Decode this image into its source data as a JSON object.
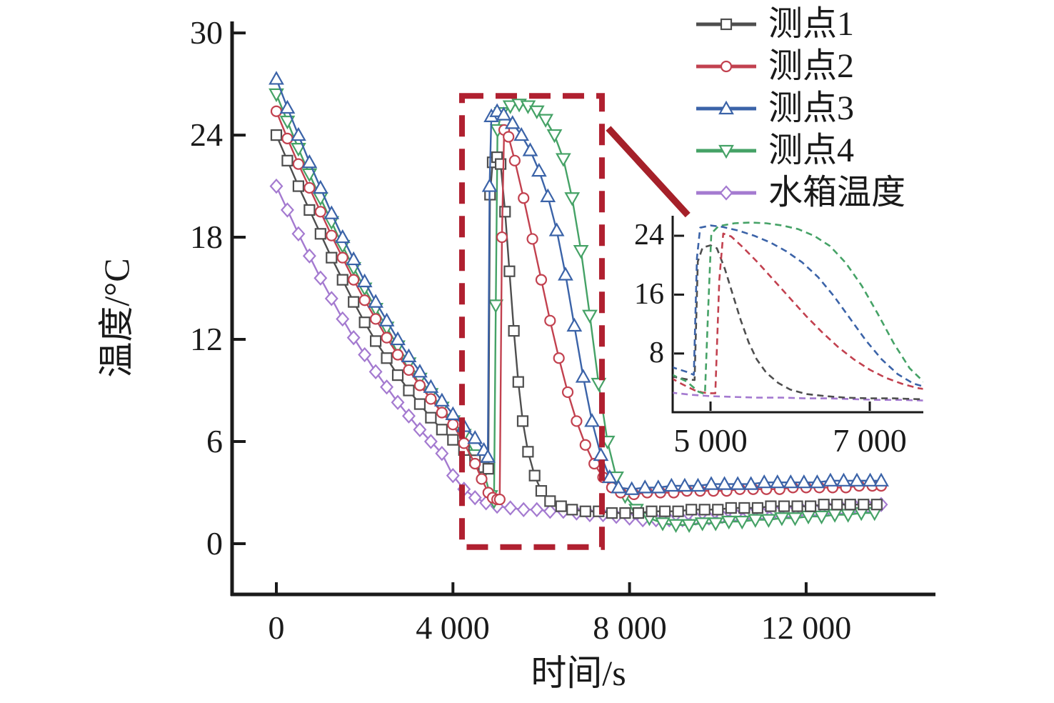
{
  "chart_data": {
    "type": "line",
    "title": "",
    "xlabel": "时间/s",
    "ylabel": "温度/°C",
    "xlim": [
      -1000,
      14900
    ],
    "ylim": [
      -3,
      30.6
    ],
    "grid": false,
    "x_ticks": [
      {
        "value": 0,
        "label": "0"
      },
      {
        "value": 4000,
        "label": "4 000"
      },
      {
        "value": 8000,
        "label": "8 000"
      },
      {
        "value": 12000,
        "label": "12 000"
      }
    ],
    "y_ticks": [
      {
        "value": 0,
        "label": "0"
      },
      {
        "value": 6,
        "label": "6"
      },
      {
        "value": 12,
        "label": "12"
      },
      {
        "value": 18,
        "label": "18"
      },
      {
        "value": 24,
        "label": "24"
      },
      {
        "value": 30,
        "label": "30"
      }
    ],
    "legend": {
      "position": "top-right"
    },
    "series": [
      {
        "name": "测点1",
        "color": "#4e4e4e",
        "marker": "square",
        "points": [
          [
            0,
            24.0
          ],
          [
            250,
            22.5
          ],
          [
            500,
            21.0
          ],
          [
            750,
            19.6
          ],
          [
            1000,
            18.2
          ],
          [
            1250,
            16.8
          ],
          [
            1500,
            15.5
          ],
          [
            1750,
            14.2
          ],
          [
            2000,
            13.0
          ],
          [
            2250,
            11.9
          ],
          [
            2500,
            10.9
          ],
          [
            2750,
            9.9
          ],
          [
            3000,
            9.0
          ],
          [
            3250,
            8.2
          ],
          [
            3500,
            7.4
          ],
          [
            3750,
            6.7
          ],
          [
            4000,
            6.1
          ],
          [
            4250,
            5.5
          ],
          [
            4500,
            4.9
          ],
          [
            4700,
            4.5
          ],
          [
            4800,
            4.4
          ],
          [
            4840,
            20.5
          ],
          [
            4900,
            22.4
          ],
          [
            5000,
            22.7
          ],
          [
            5080,
            22.3
          ],
          [
            5180,
            19.5
          ],
          [
            5280,
            16.0
          ],
          [
            5380,
            12.5
          ],
          [
            5480,
            9.5
          ],
          [
            5580,
            7.2
          ],
          [
            5700,
            5.4
          ],
          [
            5850,
            4.0
          ],
          [
            6000,
            3.1
          ],
          [
            6200,
            2.5
          ],
          [
            6450,
            2.2
          ],
          [
            6700,
            2.0
          ],
          [
            7000,
            1.9
          ],
          [
            7300,
            1.9
          ],
          [
            7600,
            1.8
          ],
          [
            7900,
            1.8
          ],
          [
            8200,
            1.8
          ],
          [
            8500,
            1.9
          ],
          [
            8800,
            1.9
          ],
          [
            9100,
            1.9
          ],
          [
            9400,
            2.0
          ],
          [
            9700,
            2.0
          ],
          [
            10000,
            2.0
          ],
          [
            10300,
            2.1
          ],
          [
            10600,
            2.1
          ],
          [
            10900,
            2.1
          ],
          [
            11200,
            2.2
          ],
          [
            11500,
            2.2
          ],
          [
            11800,
            2.2
          ],
          [
            12100,
            2.2
          ],
          [
            12400,
            2.3
          ],
          [
            12700,
            2.3
          ],
          [
            13000,
            2.3
          ],
          [
            13300,
            2.3
          ],
          [
            13600,
            2.3
          ]
        ]
      },
      {
        "name": "测点2",
        "color": "#c2414f",
        "marker": "circle",
        "points": [
          [
            0,
            25.4
          ],
          [
            250,
            23.8
          ],
          [
            500,
            22.3
          ],
          [
            750,
            20.9
          ],
          [
            1000,
            19.5
          ],
          [
            1250,
            18.1
          ],
          [
            1500,
            16.8
          ],
          [
            1750,
            15.5
          ],
          [
            2000,
            14.3
          ],
          [
            2250,
            13.2
          ],
          [
            2500,
            12.1
          ],
          [
            2750,
            11.1
          ],
          [
            3000,
            10.2
          ],
          [
            3250,
            9.3
          ],
          [
            3500,
            8.5
          ],
          [
            3750,
            7.7
          ],
          [
            4000,
            7.0
          ],
          [
            4250,
            5.9
          ],
          [
            4500,
            4.7
          ],
          [
            4650,
            3.8
          ],
          [
            4800,
            3.0
          ],
          [
            4900,
            2.7
          ],
          [
            5000,
            2.6
          ],
          [
            5060,
            2.6
          ],
          [
            5110,
            18.0
          ],
          [
            5160,
            24.3
          ],
          [
            5260,
            23.9
          ],
          [
            5400,
            22.5
          ],
          [
            5600,
            20.3
          ],
          [
            5800,
            17.9
          ],
          [
            6000,
            15.5
          ],
          [
            6200,
            13.1
          ],
          [
            6400,
            10.9
          ],
          [
            6600,
            8.9
          ],
          [
            6800,
            7.2
          ],
          [
            7000,
            5.8
          ],
          [
            7200,
            4.7
          ],
          [
            7400,
            3.9
          ],
          [
            7600,
            3.3
          ],
          [
            7800,
            3.0
          ],
          [
            8100,
            2.9
          ],
          [
            8400,
            3.0
          ],
          [
            8700,
            3.0
          ],
          [
            9000,
            3.0
          ],
          [
            9300,
            3.1
          ],
          [
            9600,
            3.1
          ],
          [
            9900,
            3.1
          ],
          [
            10200,
            3.1
          ],
          [
            10500,
            3.2
          ],
          [
            10800,
            3.2
          ],
          [
            11100,
            3.2
          ],
          [
            11400,
            3.2
          ],
          [
            11700,
            3.3
          ],
          [
            12000,
            3.3
          ],
          [
            12300,
            3.3
          ],
          [
            12600,
            3.3
          ],
          [
            12900,
            3.3
          ],
          [
            13200,
            3.4
          ],
          [
            13500,
            3.4
          ],
          [
            13700,
            3.4
          ]
        ]
      },
      {
        "name": "测点3",
        "color": "#3b63a8",
        "marker": "triangle-up",
        "points": [
          [
            0,
            27.3
          ],
          [
            250,
            25.6
          ],
          [
            500,
            24.0
          ],
          [
            750,
            22.4
          ],
          [
            1000,
            20.9
          ],
          [
            1250,
            19.4
          ],
          [
            1500,
            18.0
          ],
          [
            1750,
            16.7
          ],
          [
            2000,
            15.4
          ],
          [
            2250,
            14.2
          ],
          [
            2500,
            13.1
          ],
          [
            2750,
            12.0
          ],
          [
            3000,
            11.0
          ],
          [
            3250,
            10.1
          ],
          [
            3500,
            9.2
          ],
          [
            3750,
            8.4
          ],
          [
            4000,
            7.6
          ],
          [
            4250,
            6.9
          ],
          [
            4500,
            6.2
          ],
          [
            4700,
            5.5
          ],
          [
            4790,
            5.1
          ],
          [
            4830,
            21.0
          ],
          [
            4870,
            25.1
          ],
          [
            5000,
            25.4
          ],
          [
            5150,
            25.2
          ],
          [
            5350,
            24.7
          ],
          [
            5550,
            24.0
          ],
          [
            5750,
            23.1
          ],
          [
            5950,
            21.9
          ],
          [
            6150,
            20.4
          ],
          [
            6350,
            18.4
          ],
          [
            6550,
            15.8
          ],
          [
            6750,
            12.8
          ],
          [
            6950,
            9.8
          ],
          [
            7150,
            7.2
          ],
          [
            7350,
            5.2
          ],
          [
            7550,
            3.9
          ],
          [
            7750,
            3.3
          ],
          [
            8050,
            3.2
          ],
          [
            8350,
            3.3
          ],
          [
            8650,
            3.3
          ],
          [
            8950,
            3.4
          ],
          [
            9250,
            3.4
          ],
          [
            9550,
            3.4
          ],
          [
            9850,
            3.5
          ],
          [
            10150,
            3.5
          ],
          [
            10450,
            3.5
          ],
          [
            10750,
            3.5
          ],
          [
            11050,
            3.6
          ],
          [
            11350,
            3.6
          ],
          [
            11650,
            3.6
          ],
          [
            11950,
            3.6
          ],
          [
            12250,
            3.6
          ],
          [
            12550,
            3.7
          ],
          [
            12850,
            3.7
          ],
          [
            13150,
            3.7
          ],
          [
            13450,
            3.7
          ],
          [
            13700,
            3.7
          ]
        ]
      },
      {
        "name": "测点4",
        "color": "#45a266",
        "marker": "triangle-down",
        "points": [
          [
            0,
            26.4
          ],
          [
            250,
            24.8
          ],
          [
            500,
            23.2
          ],
          [
            750,
            21.7
          ],
          [
            1000,
            20.3
          ],
          [
            1250,
            18.9
          ],
          [
            1500,
            17.5
          ],
          [
            1750,
            16.2
          ],
          [
            2000,
            15.0
          ],
          [
            2250,
            13.8
          ],
          [
            2500,
            12.7
          ],
          [
            2750,
            11.6
          ],
          [
            3000,
            10.6
          ],
          [
            3250,
            9.7
          ],
          [
            3500,
            8.8
          ],
          [
            3750,
            8.0
          ],
          [
            4000,
            7.2
          ],
          [
            4250,
            6.4
          ],
          [
            4500,
            5.2
          ],
          [
            4700,
            4.2
          ],
          [
            4850,
            2.8
          ],
          [
            4930,
            2.5
          ],
          [
            4970,
            14.0
          ],
          [
            5010,
            24.3
          ],
          [
            5100,
            25.3
          ],
          [
            5300,
            25.7
          ],
          [
            5500,
            25.8
          ],
          [
            5700,
            25.7
          ],
          [
            5900,
            25.4
          ],
          [
            6100,
            24.9
          ],
          [
            6300,
            24.0
          ],
          [
            6500,
            22.6
          ],
          [
            6700,
            20.3
          ],
          [
            6900,
            17.2
          ],
          [
            7100,
            13.4
          ],
          [
            7300,
            9.4
          ],
          [
            7500,
            6.0
          ],
          [
            7700,
            3.9
          ],
          [
            7900,
            2.8
          ],
          [
            8150,
            2.0
          ],
          [
            8450,
            1.5
          ],
          [
            8750,
            1.2
          ],
          [
            9050,
            1.1
          ],
          [
            9350,
            1.1
          ],
          [
            9650,
            1.2
          ],
          [
            9950,
            1.2
          ],
          [
            10250,
            1.3
          ],
          [
            10550,
            1.3
          ],
          [
            10850,
            1.4
          ],
          [
            11150,
            1.4
          ],
          [
            11450,
            1.5
          ],
          [
            11750,
            1.5
          ],
          [
            12050,
            1.6
          ],
          [
            12350,
            1.6
          ],
          [
            12650,
            1.7
          ],
          [
            12950,
            1.7
          ],
          [
            13250,
            1.8
          ],
          [
            13550,
            1.8
          ]
        ]
      },
      {
        "name": "水箱温度",
        "color": "#a47ad0",
        "marker": "diamond",
        "points": [
          [
            0,
            21.0
          ],
          [
            250,
            19.6
          ],
          [
            500,
            18.2
          ],
          [
            750,
            16.9
          ],
          [
            1000,
            15.6
          ],
          [
            1250,
            14.4
          ],
          [
            1500,
            13.2
          ],
          [
            1750,
            12.1
          ],
          [
            2000,
            11.1
          ],
          [
            2250,
            10.1
          ],
          [
            2500,
            9.2
          ],
          [
            2750,
            8.3
          ],
          [
            3000,
            7.5
          ],
          [
            3250,
            6.7
          ],
          [
            3500,
            6.0
          ],
          [
            3750,
            5.3
          ],
          [
            4000,
            4.0
          ],
          [
            4250,
            3.2
          ],
          [
            4500,
            2.7
          ],
          [
            4750,
            2.4
          ],
          [
            5000,
            2.2
          ],
          [
            5300,
            2.1
          ],
          [
            5600,
            2.0
          ],
          [
            5900,
            2.0
          ],
          [
            6200,
            1.9
          ],
          [
            6500,
            1.9
          ],
          [
            6800,
            1.8
          ],
          [
            7100,
            1.7
          ],
          [
            7400,
            1.7
          ],
          [
            7700,
            1.6
          ],
          [
            8000,
            1.5
          ],
          [
            8300,
            1.4
          ],
          [
            8600,
            1.4
          ],
          [
            8900,
            1.4
          ],
          [
            9200,
            1.4
          ],
          [
            9500,
            1.5
          ],
          [
            9800,
            1.5
          ],
          [
            10100,
            1.6
          ],
          [
            10400,
            1.7
          ],
          [
            10700,
            1.8
          ],
          [
            11000,
            1.8
          ],
          [
            11300,
            1.9
          ],
          [
            11600,
            1.9
          ],
          [
            11900,
            2.0
          ],
          [
            12200,
            2.0
          ],
          [
            12500,
            2.1
          ],
          [
            12800,
            2.1
          ],
          [
            13100,
            2.2
          ],
          [
            13400,
            2.2
          ],
          [
            13700,
            2.3
          ]
        ]
      }
    ],
    "annotations": {
      "zoom_rect": {
        "t0": 4205,
        "t1": 7375,
        "T0": -0.2,
        "T1": 26.3,
        "color": "#b02030",
        "style": "dashed"
      },
      "callout_line": {
        "from_t": 7520,
        "from_T": 24.4,
        "to_t": 9320,
        "to_T": 19.3,
        "color": "#a52029"
      }
    },
    "inset": {
      "t_range": [
        4510,
        7650
      ],
      "T_range": [
        0,
        26.4
      ],
      "line_style": "dashed",
      "x_ticks": [
        {
          "value": 5000,
          "label": "5 000"
        },
        {
          "value": 7000,
          "label": "7 000"
        }
      ],
      "y_ticks": [
        {
          "value": 24,
          "label": "24"
        },
        {
          "value": 16,
          "label": "16"
        },
        {
          "value": 8,
          "label": "8"
        }
      ]
    }
  }
}
